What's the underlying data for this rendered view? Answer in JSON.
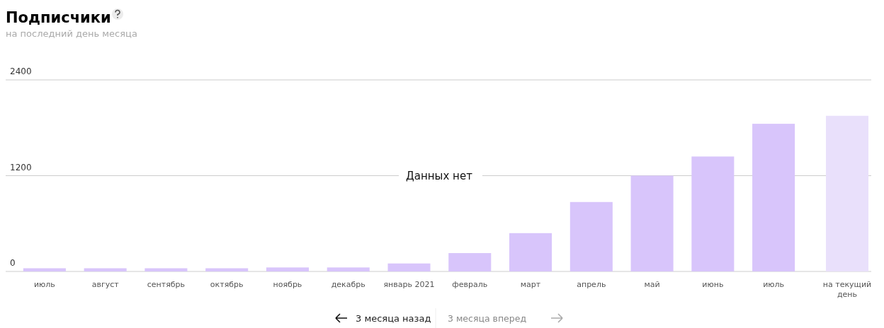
{
  "chart_data": {
    "type": "bar",
    "title": "Подписчики",
    "subtitle": "на последний день месяца",
    "categories": [
      "июль",
      "август",
      "сентябрь",
      "октябрь",
      "ноябрь",
      "декабрь",
      "январь 2021",
      "февраль",
      "март",
      "апрель",
      "май",
      "июнь",
      "июль",
      "на текущий день"
    ],
    "values": [
      40,
      40,
      40,
      40,
      50,
      50,
      100,
      230,
      480,
      870,
      1200,
      1440,
      1850,
      1950
    ],
    "colors": [
      "#d8c5fb",
      "#d8c5fb",
      "#d8c5fb",
      "#d8c5fb",
      "#d8c5fb",
      "#d8c5fb",
      "#d8c5fb",
      "#d8c5fb",
      "#d8c5fb",
      "#d8c5fb",
      "#d8c5fb",
      "#d8c5fb",
      "#d8c5fb",
      "#e9e0fb"
    ],
    "ylim": [
      0,
      2400
    ],
    "yticks": [
      0,
      1200,
      2400
    ],
    "grid": "y",
    "annotations": [
      "Данных нет",
      "3 месяца назад",
      "3 месяца вперед"
    ]
  }
}
